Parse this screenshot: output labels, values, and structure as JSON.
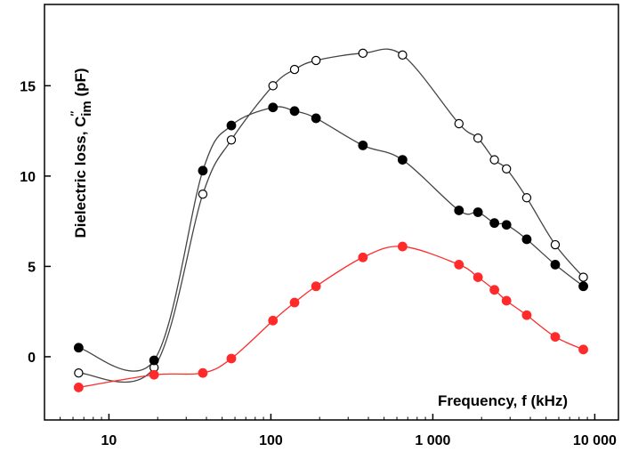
{
  "chart_data": {
    "type": "line",
    "title": "",
    "xlabel": "Frequency, f (kHz)",
    "ylabel": "Dielectric loss, C″im (pF)",
    "ylabel_parts": {
      "main": "Dielectric loss, C",
      "sup": "″",
      "sub": "im",
      "unit": " (pF)"
    },
    "xscale": "log",
    "xlim": [
      4,
      14000
    ],
    "ylim": [
      -3.5,
      19.5
    ],
    "xticks": [
      10,
      100,
      1000,
      10000
    ],
    "xtick_labels": [
      "10",
      "100",
      "1 000",
      "10 000"
    ],
    "yticks": [
      0,
      5,
      10,
      15
    ],
    "ytick_labels": [
      "0",
      "5",
      "10",
      "15"
    ],
    "grid": false,
    "legend": "none",
    "series": [
      {
        "marker": "open-circle",
        "line_color": "#444444",
        "marker_color": "#000000",
        "x": [
          6.5,
          19,
          38,
          57,
          103,
          140,
          190,
          370,
          650,
          1450,
          1900,
          2400,
          2850,
          3800,
          5700,
          8500
        ],
        "y": [
          -0.9,
          -0.6,
          9.0,
          12.0,
          15.0,
          15.9,
          16.4,
          16.8,
          16.7,
          12.9,
          12.1,
          10.9,
          10.4,
          8.8,
          6.2,
          4.4
        ]
      },
      {
        "marker": "filled-circle",
        "line_color": "#444444",
        "marker_color": "#000000",
        "x": [
          6.5,
          19,
          38,
          57,
          103,
          140,
          190,
          370,
          650,
          1450,
          1900,
          2400,
          2850,
          3800,
          5700,
          8500
        ],
        "y": [
          0.5,
          -0.2,
          10.3,
          12.8,
          13.8,
          13.6,
          13.2,
          11.7,
          10.9,
          8.1,
          8.0,
          7.4,
          7.3,
          6.5,
          5.1,
          3.9
        ]
      },
      {
        "marker": "filled-circle",
        "line_color": "#ff2a2a",
        "marker_color": "#ff2a2a",
        "x": [
          6.5,
          19,
          38,
          57,
          103,
          140,
          190,
          370,
          650,
          1450,
          1900,
          2400,
          2850,
          3800,
          5700,
          8500
        ],
        "y": [
          -1.7,
          -1.0,
          -0.9,
          -0.1,
          2.0,
          3.0,
          3.9,
          5.5,
          6.1,
          5.1,
          4.4,
          3.7,
          3.1,
          2.3,
          1.1,
          0.4
        ]
      }
    ]
  }
}
